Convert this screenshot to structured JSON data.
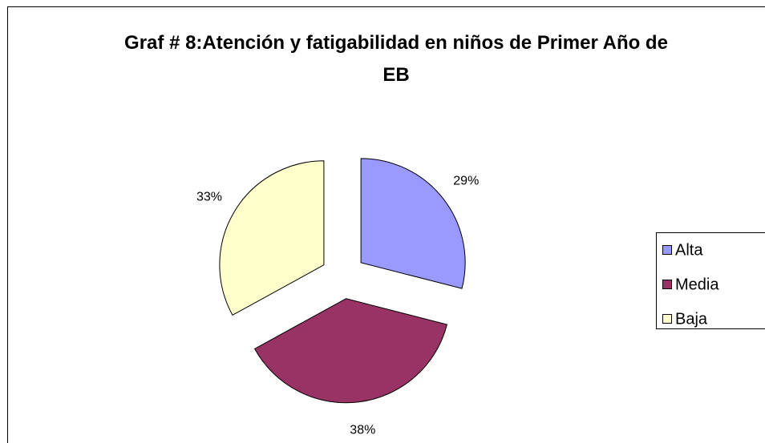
{
  "chart_data": {
    "type": "pie",
    "title": "Graf # 8:Atención y fatigabilidad en niños de Primer Año de EB",
    "categories": [
      "Alta",
      "Media",
      "Baja"
    ],
    "values": [
      29,
      38,
      33
    ],
    "value_labels": [
      "29%",
      "38%",
      "33%"
    ],
    "colors": [
      "#9999ff",
      "#993366",
      "#ffffcc"
    ],
    "exploded": true,
    "legend_position": "right"
  }
}
